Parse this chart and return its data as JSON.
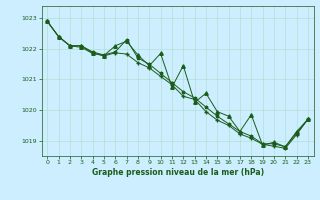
{
  "title": "Graphe pression niveau de la mer (hPa)",
  "background_color": "#cceeff",
  "grid_color": "#aaddcc",
  "line_color": "#1a5c1a",
  "xlim": [
    -0.5,
    23.5
  ],
  "ylim": [
    1018.5,
    1023.4
  ],
  "yticks": [
    1019,
    1020,
    1021,
    1022,
    1023
  ],
  "xticks": [
    0,
    1,
    2,
    3,
    4,
    5,
    6,
    7,
    8,
    9,
    10,
    11,
    12,
    13,
    14,
    15,
    16,
    17,
    18,
    19,
    20,
    21,
    22,
    23
  ],
  "series1_x": [
    0,
    1,
    2,
    3,
    4,
    5,
    6,
    7,
    8,
    9,
    10,
    11,
    12,
    13,
    14,
    15,
    16,
    17,
    18,
    19,
    20,
    21,
    22,
    23
  ],
  "series1_y": [
    1022.9,
    1022.4,
    1022.1,
    1022.1,
    1021.9,
    1021.8,
    1021.9,
    1022.3,
    1021.7,
    1021.5,
    1021.2,
    1020.9,
    1020.6,
    1020.4,
    1020.1,
    1019.8,
    1019.55,
    1019.3,
    1019.15,
    1018.9,
    1018.9,
    1018.8,
    1019.25,
    1019.7
  ],
  "series2_x": [
    0,
    1,
    2,
    3,
    4,
    5,
    6,
    7,
    8,
    9,
    10,
    11,
    12,
    13,
    14,
    15,
    16,
    17,
    18,
    19,
    20,
    21,
    22,
    23
  ],
  "series2_y": [
    1022.9,
    1022.4,
    1022.1,
    1022.1,
    1021.87,
    1021.77,
    1021.87,
    1021.83,
    1021.55,
    1021.38,
    1021.1,
    1020.83,
    1020.45,
    1020.35,
    1019.95,
    1019.67,
    1019.5,
    1019.22,
    1019.08,
    1018.88,
    1018.82,
    1018.75,
    1019.2,
    1019.7
  ],
  "series3_x": [
    0,
    1,
    2,
    3,
    4,
    5,
    6,
    7,
    8,
    9,
    10,
    11,
    12,
    13,
    14,
    15,
    16,
    17,
    18,
    19,
    20,
    21,
    22,
    23
  ],
  "series3_y": [
    1022.9,
    1022.4,
    1022.1,
    1022.05,
    1021.85,
    1021.78,
    1022.1,
    1022.25,
    1021.8,
    1021.45,
    1021.85,
    1020.75,
    1021.45,
    1020.25,
    1020.55,
    1019.95,
    1019.8,
    1019.3,
    1019.85,
    1018.85,
    1018.95,
    1018.8,
    1019.3,
    1019.7
  ]
}
